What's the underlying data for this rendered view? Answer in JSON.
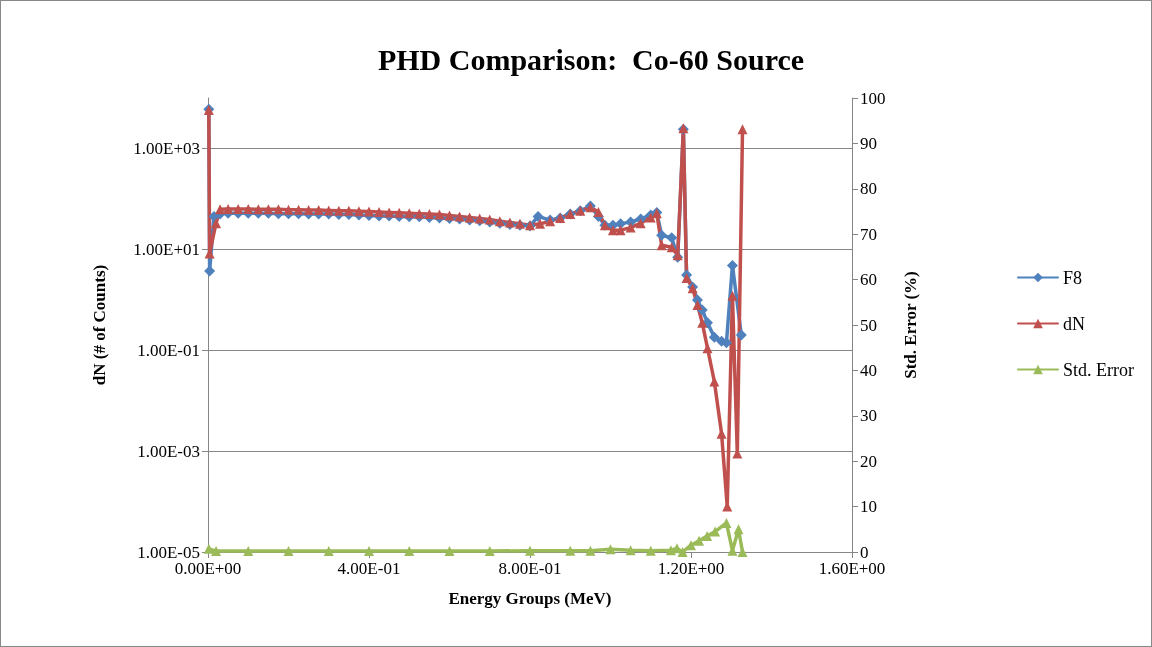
{
  "chart_data": {
    "type": "line",
    "title": "PHD Comparison:  Co-60 Source",
    "xlabel": "Energy Groups (MeV)",
    "ylabel": "dN (# of Counts)",
    "y2label": "Std. Error (%)",
    "xlim": [
      0,
      1.6
    ],
    "xticks": [
      {
        "value": 0,
        "label": "0.00E+00"
      },
      {
        "value": 0.4,
        "label": "4.00E-01"
      },
      {
        "value": 0.8,
        "label": "8.00E-01"
      },
      {
        "value": 1.2,
        "label": "1.20E+00"
      },
      {
        "value": 1.6,
        "label": "1.60E+00"
      }
    ],
    "ylim": [
      1e-05,
      10000
    ],
    "yticks": [
      {
        "value": 1e-05,
        "label": "1.00E-05"
      },
      {
        "value": 0.001,
        "label": "1.00E-03"
      },
      {
        "value": 0.1,
        "label": "1.00E-01"
      },
      {
        "value": 10,
        "label": "1.00E+01"
      },
      {
        "value": 1000,
        "label": "1.00E+03"
      }
    ],
    "y2lim": [
      0,
      100
    ],
    "y2ticks": [
      0,
      10,
      20,
      30,
      40,
      50,
      60,
      70,
      80,
      90,
      100
    ],
    "log": "y",
    "grid": "y",
    "legend": "right",
    "series": [
      {
        "name": "F8",
        "color": "#4f81bd",
        "marker": "diamond",
        "x": [
          0.002,
          0.004,
          0.015,
          0.03,
          0.05,
          0.075,
          0.1,
          0.125,
          0.15,
          0.175,
          0.2,
          0.225,
          0.25,
          0.275,
          0.3,
          0.325,
          0.35,
          0.375,
          0.4,
          0.425,
          0.45,
          0.475,
          0.5,
          0.525,
          0.55,
          0.575,
          0.6,
          0.625,
          0.65,
          0.675,
          0.7,
          0.725,
          0.75,
          0.775,
          0.8,
          0.82,
          0.85,
          0.875,
          0.9,
          0.925,
          0.95,
          0.97,
          0.986,
          1.006,
          1.025,
          1.05,
          1.075,
          1.1,
          1.115,
          1.127,
          1.152,
          1.167,
          1.181,
          1.189,
          1.204,
          1.216,
          1.228,
          1.241,
          1.258,
          1.276,
          1.288,
          1.303,
          1.325
        ],
        "values": [
          6000,
          3.7,
          45,
          50,
          52,
          52,
          52,
          52,
          52,
          51,
          51,
          51,
          50,
          50,
          50,
          49,
          49,
          48,
          47,
          46,
          46,
          45,
          44,
          44,
          43,
          42,
          41,
          40,
          38,
          37,
          35,
          33,
          31,
          30,
          29,
          45,
          38,
          42,
          50,
          58,
          72,
          45,
          30,
          30,
          32,
          35,
          40,
          48,
          54,
          19,
          17,
          7,
          2400,
          3.1,
          1.8,
          0.99,
          0.63,
          0.35,
          0.18,
          0.15,
          0.14,
          4.8,
          0.2
        ]
      },
      {
        "name": "dN",
        "color": "#c0504d",
        "marker": "triangle",
        "x": [
          0.002,
          0.004,
          0.02,
          0.03,
          0.05,
          0.075,
          0.1,
          0.125,
          0.15,
          0.175,
          0.2,
          0.225,
          0.25,
          0.275,
          0.3,
          0.325,
          0.35,
          0.375,
          0.4,
          0.425,
          0.45,
          0.475,
          0.5,
          0.525,
          0.55,
          0.575,
          0.6,
          0.625,
          0.65,
          0.675,
          0.7,
          0.725,
          0.75,
          0.775,
          0.8,
          0.825,
          0.85,
          0.875,
          0.9,
          0.925,
          0.95,
          0.97,
          0.986,
          1.006,
          1.025,
          1.05,
          1.075,
          1.1,
          1.115,
          1.127,
          1.152,
          1.167,
          1.181,
          1.189,
          1.204,
          1.216,
          1.228,
          1.241,
          1.258,
          1.276,
          1.29,
          1.303,
          1.315,
          1.328
        ],
        "values": [
          5800,
          8.3,
          33,
          62,
          63,
          63,
          63,
          62,
          62,
          62,
          61,
          61,
          60,
          60,
          59,
          58,
          58,
          57,
          56,
          55,
          54,
          53,
          52,
          51,
          50,
          49,
          47,
          45,
          43,
          41,
          39,
          36,
          34,
          32,
          30,
          32,
          36,
          42,
          50,
          58,
          68,
          55,
          30,
          24,
          24,
          27,
          33,
          43,
          52,
          12,
          11,
          7.6,
          2500,
          2.7,
          1.7,
          0.79,
          0.35,
          0.11,
          0.024,
          0.0022,
          8e-05,
          1.2,
          0.0009,
          2400
        ]
      },
      {
        "name": "Std. Error",
        "color": "#9bbb59",
        "marker": "triangle",
        "axis": "y2",
        "x": [
          0.002,
          0.02,
          0.1,
          0.2,
          0.3,
          0.4,
          0.5,
          0.6,
          0.7,
          0.8,
          0.9,
          0.95,
          1.0,
          1.05,
          1.1,
          1.15,
          1.165,
          1.179,
          1.2,
          1.22,
          1.24,
          1.26,
          1.288,
          1.303,
          1.318,
          1.328
        ],
        "values": [
          0.7,
          0.2,
          0.2,
          0.2,
          0.2,
          0.2,
          0.2,
          0.2,
          0.2,
          0.3,
          0.3,
          0.3,
          0.6,
          0.4,
          0.3,
          0.4,
          0.8,
          0,
          1.5,
          2.5,
          3.5,
          4.5,
          6.4,
          0.3,
          5,
          0
        ]
      }
    ]
  }
}
